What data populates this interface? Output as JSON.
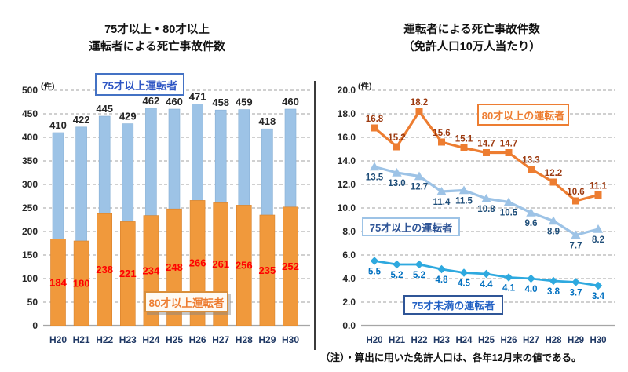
{
  "page": {
    "note": "（注）・算出に用いた免許人口は、各年12月末の値である。"
  },
  "left_chart": {
    "title_line1": "75才以上・80才以上",
    "title_line2": "運転者による死亡事故件数",
    "unit": "(件)"
  },
  "right_chart": {
    "title_line1": "運転者による死亡事故件数",
    "title_line2": "（免許人口10万人当たり）",
    "unit": "(件)"
  },
  "chart_data": [
    {
      "type": "bar",
      "title": "75才以上・80才以上 運転者による死亡事故件数",
      "unit": "件",
      "categories": [
        "H20",
        "H21",
        "H22",
        "H23",
        "H24",
        "H25",
        "H26",
        "H27",
        "H28",
        "H29",
        "H30"
      ],
      "series": [
        {
          "name": "75才以上運転者",
          "values": [
            410,
            422,
            445,
            429,
            462,
            460,
            471,
            458,
            459,
            418,
            460
          ],
          "color": "#9DC3E6",
          "edge_color": "#86AFD6",
          "label_color": "#262626",
          "label_position": "outside-top"
        },
        {
          "name": "80才以上運転者",
          "values": [
            184,
            180,
            238,
            221,
            234,
            248,
            266,
            261,
            256,
            235,
            252
          ],
          "color": "#F0993C",
          "edge_color": "#D8812A",
          "label_color": "#FF0000",
          "label_position": "inside-center"
        }
      ],
      "bar_mode": "overlap",
      "ylim": [
        0,
        500
      ],
      "ytick_step": 50,
      "grid": "dashed-horizontal",
      "axis_label_color": "#1F3864",
      "legend_position": "boxes-in-plot"
    },
    {
      "type": "line",
      "title": "運転者による死亡事故件数（免許人口10万人当たり）",
      "unit": "件",
      "categories": [
        "H20",
        "H21",
        "H22",
        "H23",
        "H24",
        "H25",
        "H26",
        "H27",
        "H28",
        "H29",
        "H30"
      ],
      "series": [
        {
          "name": "80才以上の運転者",
          "values": [
            16.8,
            15.2,
            18.2,
            15.6,
            15.1,
            14.7,
            14.7,
            13.3,
            12.2,
            10.6,
            11.1
          ],
          "color": "#ED7D31",
          "marker": "square",
          "label_color": "#9C3A10",
          "label_position": "above"
        },
        {
          "name": "75才以上の運転者",
          "values": [
            13.5,
            13.0,
            12.7,
            11.4,
            11.5,
            10.8,
            10.5,
            9.6,
            8.9,
            7.7,
            8.2
          ],
          "color": "#9DC3E6",
          "marker": "triangle",
          "label_color": "#1F4E79",
          "label_position": "below"
        },
        {
          "name": "75才未満の運転者",
          "values": [
            5.5,
            5.2,
            5.2,
            4.8,
            4.5,
            4.4,
            4.1,
            4.0,
            3.8,
            3.7,
            3.4
          ],
          "color": "#2EA9DF",
          "marker": "diamond",
          "label_color": "#0070C0",
          "label_position": "below"
        }
      ],
      "ylim": [
        0,
        20
      ],
      "ytick_step": 2,
      "ytick_format": "one-decimal",
      "grid": "dashed-horizontal",
      "axis_label_color": "#1F3864",
      "legend_position": "boxes-in-plot"
    }
  ]
}
